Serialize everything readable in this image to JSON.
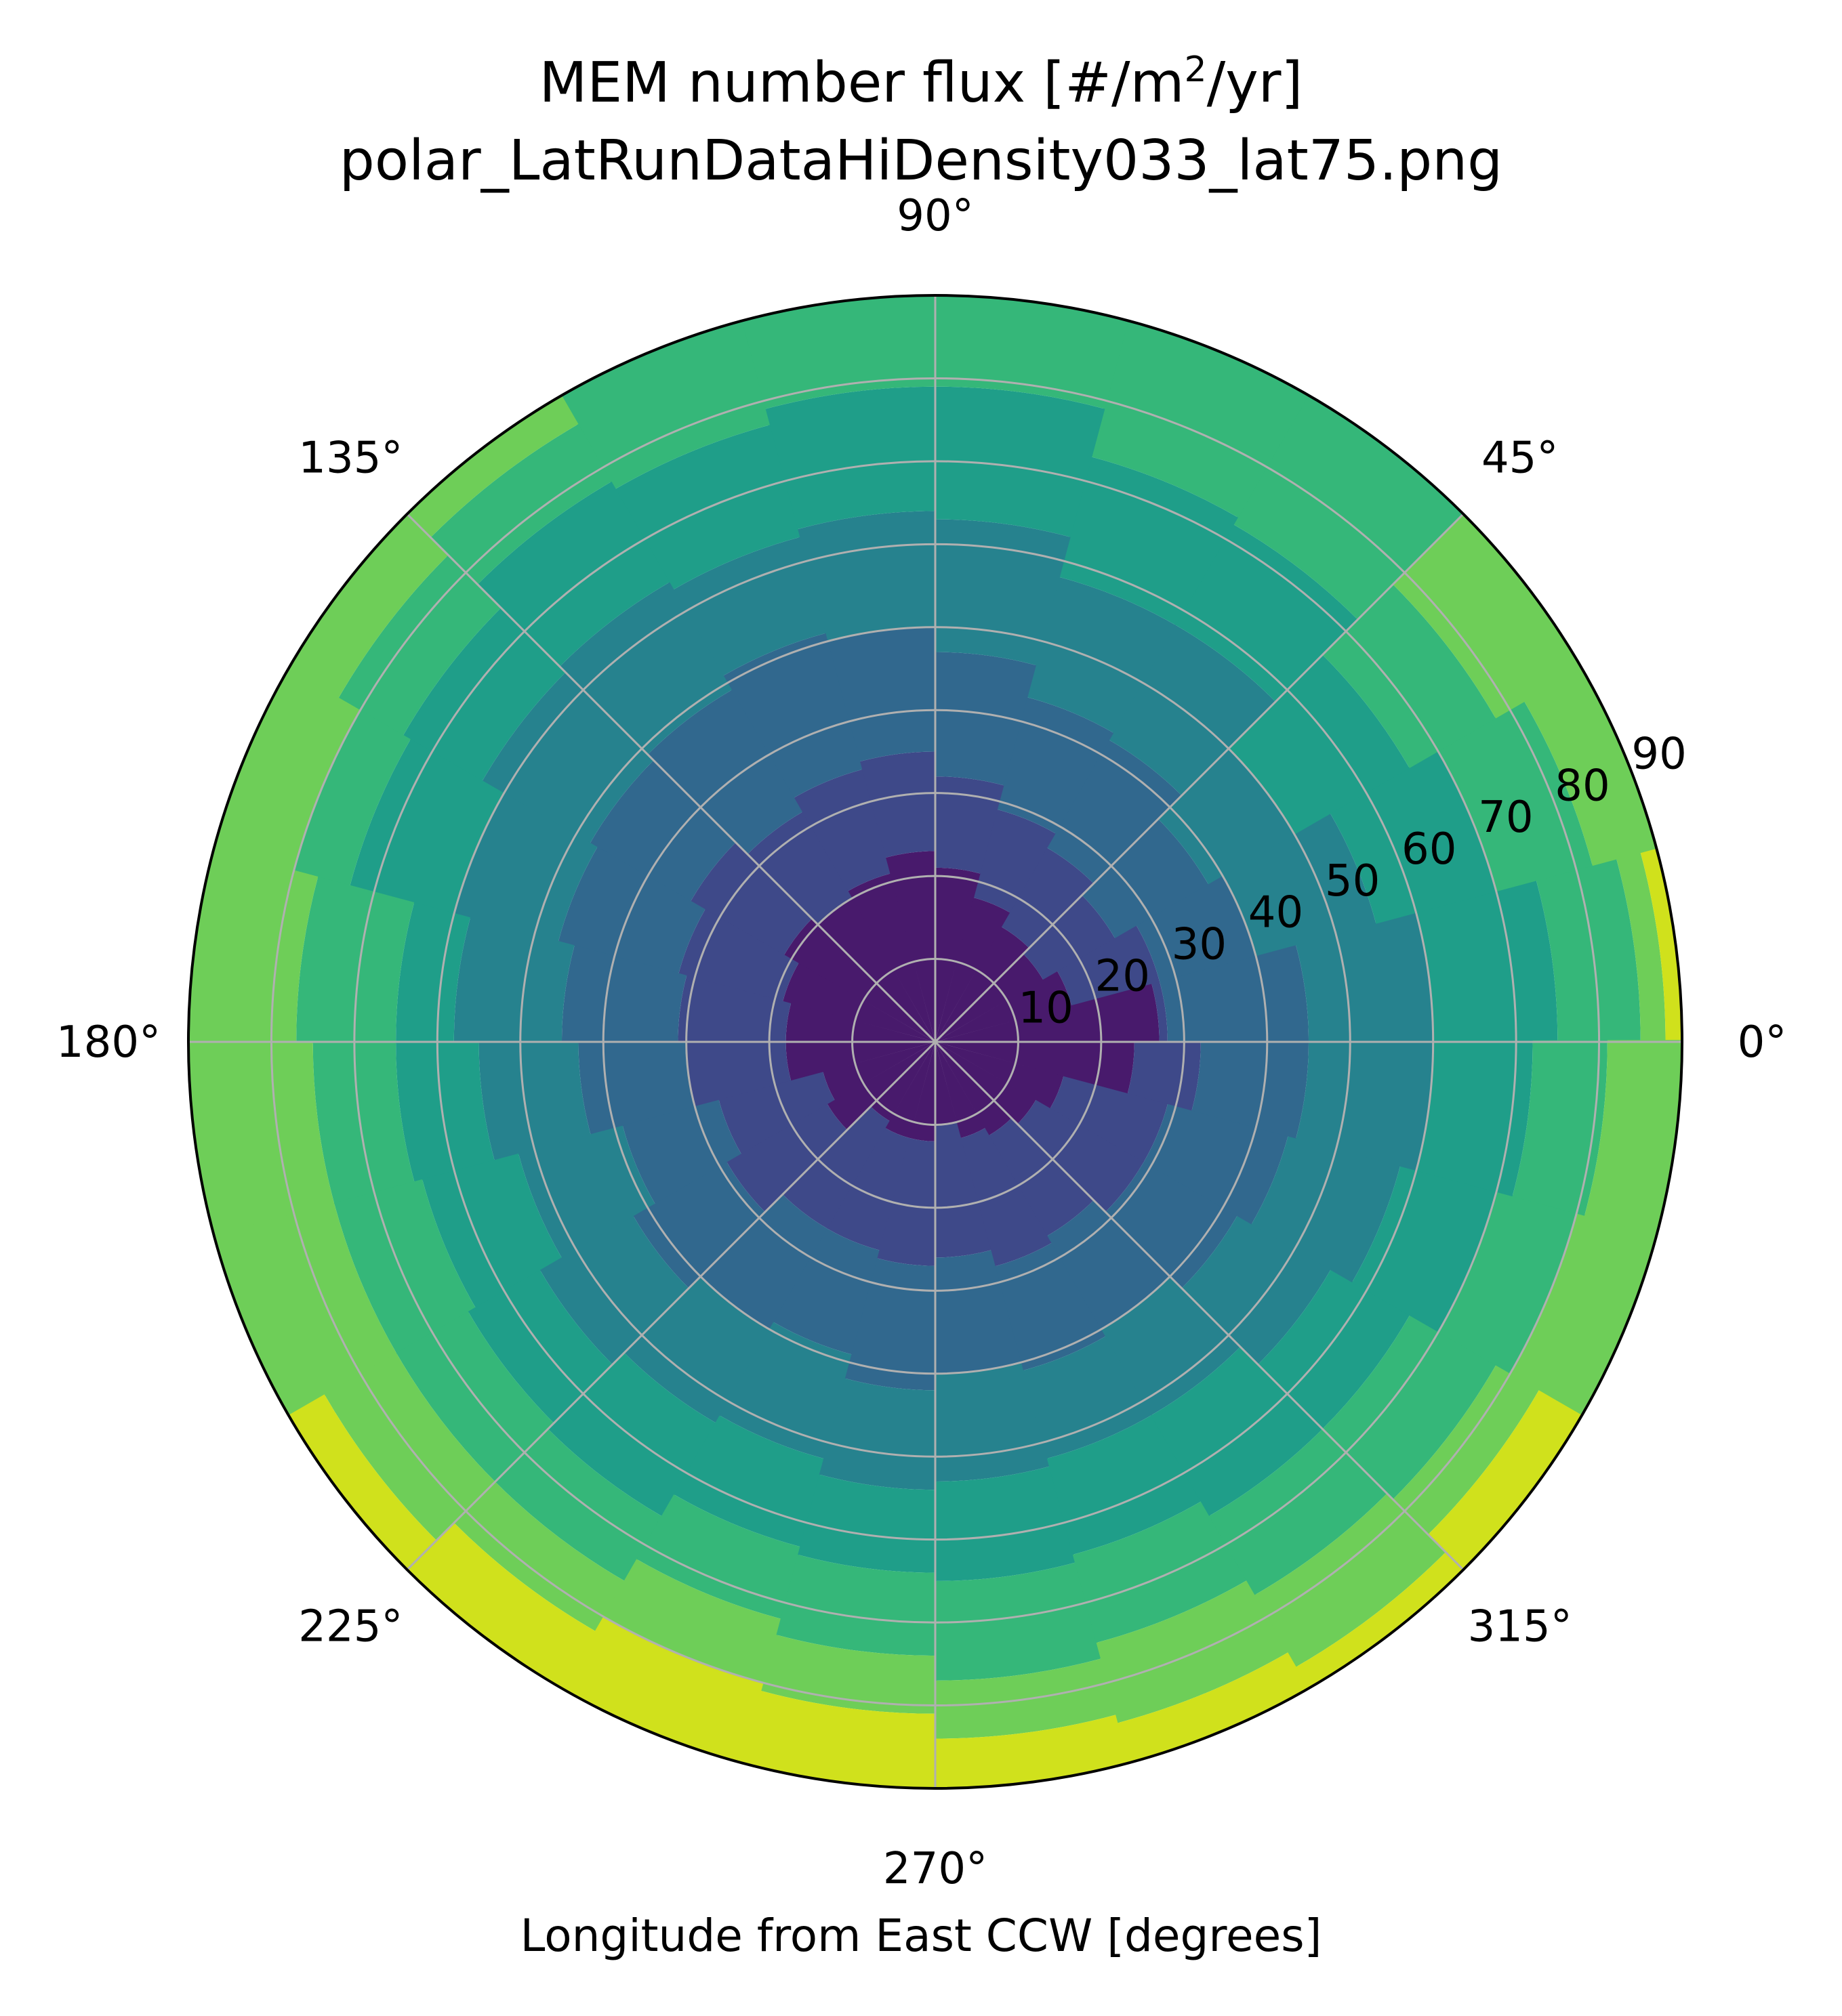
{
  "chart_data": {
    "type": "heatmap",
    "projection": "polar",
    "title_prefix": "MEM number flux [#/m",
    "title_sup": "2",
    "title_suffix": "/yr]",
    "subtitle": "polar_LatRunDataHiDensity033_lat75.png",
    "xlabel": "Longitude from East CCW [degrees]",
    "theta_tick_labels": [
      "0°",
      "45°",
      "90°",
      "135°",
      "180°",
      "225°",
      "270°",
      "315°"
    ],
    "theta_ticks_deg": [
      0,
      45,
      90,
      135,
      180,
      225,
      270,
      315
    ],
    "r_tick_labels": [
      "10",
      "20",
      "30",
      "40",
      "50",
      "60",
      "70",
      "80",
      "90"
    ],
    "r_ticks": [
      10,
      20,
      30,
      40,
      50,
      60,
      70,
      80,
      90
    ],
    "r_range": [
      0,
      90
    ],
    "theta_range_deg": [
      0,
      360
    ],
    "theta_direction": "counter-clockwise",
    "theta_zero_location": "east",
    "grid": true,
    "colormap": "viridis",
    "level_colors": [
      "#481a6c",
      "#3e4989",
      "#31688e",
      "#26828e",
      "#1f9e89",
      "#35b779",
      "#6ece58",
      "#d0e11c"
    ],
    "theta_bins_deg": [
      0,
      15,
      30,
      45,
      60,
      75,
      90,
      105,
      120,
      135,
      150,
      165,
      180,
      195,
      210,
      225,
      240,
      255,
      270,
      285,
      300,
      315,
      330,
      345,
      360
    ],
    "boundaries_description": "For each theta bin, the radial positions (degrees from center) where the flux level increases by one step, from level 0 (darkest) outward.",
    "level_boundaries": [
      [
        27,
        28,
        45,
        60,
        75,
        85,
        88
      ],
      [
        17,
        28,
        40,
        55,
        70,
        82,
        90
      ],
      [
        15,
        25,
        38,
        50,
        66,
        78,
        90
      ],
      [
        16,
        27,
        42,
        58,
        72,
        90,
        90
      ],
      [
        18,
        29,
        43,
        58,
        73,
        90,
        90
      ],
      [
        21,
        32,
        47,
        63,
        79,
        90,
        90
      ],
      [
        23,
        35,
        50,
        64,
        79,
        90,
        90
      ],
      [
        21,
        34,
        51,
        63,
        77,
        90,
        90
      ],
      [
        20,
        32,
        49,
        64,
        78,
        86,
        90
      ],
      [
        21,
        34,
        48,
        63,
        74,
        83,
        90
      ],
      [
        19,
        32,
        47,
        60,
        73,
        80,
        90
      ],
      [
        18,
        31,
        45,
        58,
        65,
        77,
        90
      ],
      [
        18,
        30,
        43,
        55,
        65,
        75,
        90
      ],
      [
        14,
        27,
        39,
        52,
        64,
        75,
        90
      ],
      [
        15,
        29,
        42,
        55,
        65,
        75,
        85
      ],
      [
        11,
        26,
        40,
        53,
        66,
        75,
        82
      ],
      [
        12,
        26,
        39,
        52,
        63,
        72,
        80
      ],
      [
        12,
        27,
        42,
        54,
        64,
        74,
        81
      ],
      [
        10,
        26,
        40,
        53,
        65,
        77,
        84
      ],
      [
        12,
        28,
        41,
        52,
        64,
        75,
        85
      ],
      [
        13,
        27,
        40,
        52,
        66,
        77,
        87
      ],
      [
        14,
        29,
        42,
        55,
        66,
        78,
        84
      ],
      [
        16,
        29,
        44,
        58,
        70,
        80,
        90
      ],
      [
        24,
        32,
        45,
        60,
        72,
        81,
        90
      ]
    ]
  }
}
